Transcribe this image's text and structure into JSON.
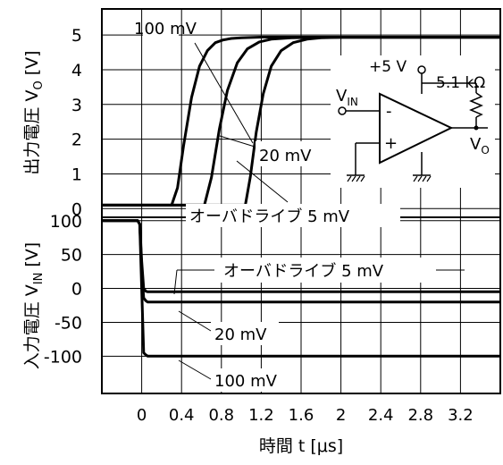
{
  "chart_data": [
    {
      "type": "line",
      "ylabel": "出力電圧 V",
      "ylabel_sub": "O",
      "ylabel_unit": " [V]",
      "yticks": [
        "0",
        "1",
        "2",
        "3",
        "4",
        "5"
      ],
      "ylim": [
        -0.25,
        5.75
      ],
      "xlim": [
        -0.4,
        3.6
      ],
      "series": [
        {
          "name": "100 mV",
          "x": [
            -0.4,
            0.3,
            0.36,
            0.42,
            0.5,
            0.58,
            0.66,
            0.74,
            0.82,
            0.9,
            1.0,
            1.2,
            3.6
          ],
          "y": [
            0.1,
            0.1,
            0.6,
            1.8,
            3.2,
            4.1,
            4.55,
            4.78,
            4.86,
            4.9,
            4.92,
            4.94,
            4.94
          ]
        },
        {
          "name": "20 mV",
          "x": [
            -0.4,
            0.63,
            0.7,
            0.78,
            0.86,
            0.96,
            1.06,
            1.18,
            1.3,
            1.5,
            1.8,
            3.6
          ],
          "y": [
            0.1,
            0.1,
            0.9,
            2.3,
            3.4,
            4.2,
            4.6,
            4.8,
            4.88,
            4.92,
            4.93,
            4.93
          ]
        },
        {
          "name": "オーバドライブ 5 mV",
          "x": [
            -0.4,
            1.04,
            1.09,
            1.15,
            1.22,
            1.3,
            1.4,
            1.52,
            1.66,
            1.8,
            2.0,
            3.6
          ],
          "y": [
            0.1,
            0.1,
            0.9,
            2.2,
            3.3,
            4.1,
            4.55,
            4.78,
            4.88,
            4.92,
            4.93,
            4.93
          ]
        }
      ],
      "annotations": [
        "100 mV",
        "20 mV",
        "オーバドライブ 5 mV"
      ]
    },
    {
      "type": "line",
      "ylabel": "入力電圧 V",
      "ylabel_sub": "IN",
      "ylabel_unit": " [V]",
      "yticks": [
        "100",
        "50",
        "0",
        "-50",
        "-100"
      ],
      "ylim": [
        -155,
        105
      ],
      "xlim": [
        -0.4,
        3.6
      ],
      "xticks": [
        "0",
        "0.4",
        "0.8",
        "1.2",
        "1.6",
        "2",
        "2.4",
        "2.8",
        "3.2"
      ],
      "xlabel": "時間 t [μs]",
      "series": [
        {
          "name": "100 mV",
          "x": [
            -0.4,
            -0.04,
            -0.02,
            0.0,
            0.02,
            0.04,
            0.06,
            3.6
          ],
          "y": [
            100,
            100,
            95,
            0,
            -95,
            -98,
            -100,
            -100
          ]
        },
        {
          "name": "20 mV",
          "x": [
            -0.4,
            -0.04,
            -0.02,
            0.0,
            0.02,
            0.04,
            0.06,
            3.6
          ],
          "y": [
            100,
            100,
            95,
            30,
            -14,
            -18,
            -20,
            -20
          ]
        },
        {
          "name": "オーバドライブ 5 mV",
          "x": [
            -0.4,
            -0.04,
            -0.02,
            0.0,
            0.02,
            0.04,
            0.06,
            3.6
          ],
          "y": [
            100,
            100,
            95,
            40,
            0,
            -4,
            -5,
            -5
          ]
        }
      ],
      "annotations": [
        "オーバドライブ 5 mV",
        "20 mV",
        "100 mV"
      ]
    }
  ],
  "schematic": {
    "supply": "+5 V",
    "resistor": "5.1 kΩ",
    "input_label": "V",
    "input_sub": "IN",
    "output_label": "V",
    "output_sub": "O",
    "minus": "-",
    "plus": "+"
  }
}
